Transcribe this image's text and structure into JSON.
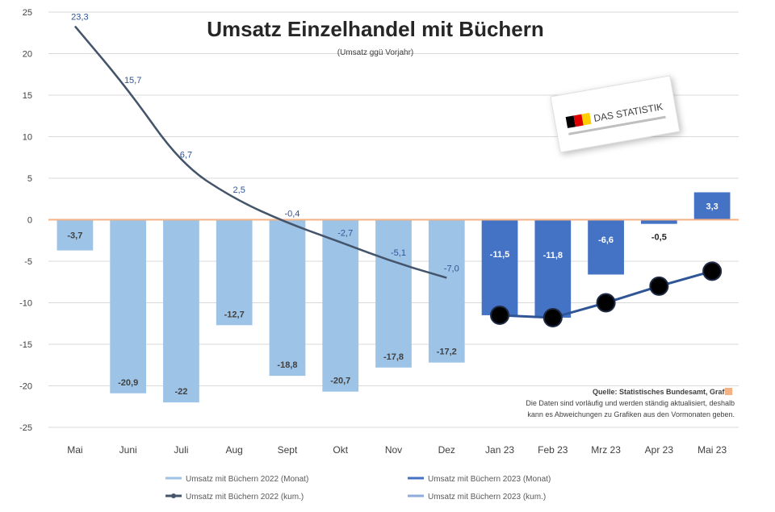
{
  "chart_data": {
    "type": "bar",
    "title": "Umsatz Einzelhandel mit Büchern",
    "subtitle": "(Umsatz ggü Vorjahr)",
    "categories": [
      "Mai",
      "Juni",
      "Juli",
      "Aug",
      "Sept",
      "Okt",
      "Nov",
      "Dez",
      "Jan 23",
      "Feb 23",
      "Mrz 23",
      "Apr 23",
      "Mai 23"
    ],
    "ylim": [
      -25,
      25
    ],
    "yticks": [
      25,
      20,
      15,
      10,
      5,
      0,
      -5,
      -10,
      -15,
      -20,
      -25
    ],
    "series": [
      {
        "name": "Umsatz mit Büchern 2022 (Monat)",
        "type": "bar",
        "color": "#9dc3e6",
        "values": [
          -3.7,
          -20.9,
          -22,
          -12.7,
          -18.8,
          -20.7,
          -17.8,
          -17.2,
          null,
          null,
          null,
          null,
          null
        ],
        "labels": [
          "-3,7",
          "-20,9",
          "-22",
          "-12,7",
          "-18,8",
          "-20,7",
          "-17,8",
          "-17,2",
          "",
          "",
          "",
          "",
          ""
        ]
      },
      {
        "name": "Umsatz mit Büchern 2023 (Monat)",
        "type": "bar",
        "color": "#4472c4",
        "values": [
          null,
          null,
          null,
          null,
          null,
          null,
          null,
          null,
          -11.5,
          -11.8,
          -6.6,
          -0.5,
          3.3
        ],
        "labels": [
          "",
          "",
          "",
          "",
          "",
          "",
          "",
          "",
          "-11,5",
          "-11,8",
          "-6,6",
          "-0,5",
          "3,3"
        ]
      },
      {
        "name": "Umsatz mit Büchern 2022 (kum.)",
        "type": "line",
        "color": "#44546a",
        "values": [
          23.3,
          15.7,
          6.7,
          2.5,
          -0.4,
          -2.7,
          -5.1,
          -7,
          null,
          null,
          null,
          null,
          null
        ],
        "labels": [
          "23,3",
          "15,7",
          "6,7",
          "2,5",
          "-0,4",
          "-2,7",
          "-5,1",
          "-7,0",
          "",
          "",
          "",
          "",
          ""
        ]
      },
      {
        "name": "Umsatz mit Büchern 2023 (kum.)",
        "type": "line",
        "color": "#2f5597",
        "values": [
          null,
          null,
          null,
          null,
          null,
          null,
          null,
          null,
          -11.5,
          -11.8,
          -10,
          -8,
          -6.2
        ],
        "labels": [
          "",
          "",
          "",
          "",
          "",
          "",
          "",
          "",
          "",
          "",
          "",
          "",
          ""
        ]
      }
    ],
    "legend": {
      "position": "bottom",
      "items": [
        {
          "label": "Umsatz mit Büchern 2022 (Monat)",
          "color": "#9dc3e6",
          "marker": "line"
        },
        {
          "label": "Umsatz mit Büchern 2023 (Monat)",
          "color": "#4472c4",
          "marker": "line"
        },
        {
          "label": "Umsatz mit Büchern 2022 (kum.)",
          "color": "#44546a",
          "marker": "line-dot"
        },
        {
          "label": "Umsatz mit Büchern 2023 (kum.)",
          "color": "#8faadc",
          "marker": "line"
        }
      ]
    },
    "source": {
      "line1": "Quelle: Statistisches Bundesamt, Grafik:",
      "line2": "Die Daten sind vorläufig und werden ständig aktualisiert, deshalb",
      "line3": "kann es Abweichungen zu Grafiken aus den Vormonaten geben."
    },
    "logo_text": "DAS STATISTIK"
  }
}
